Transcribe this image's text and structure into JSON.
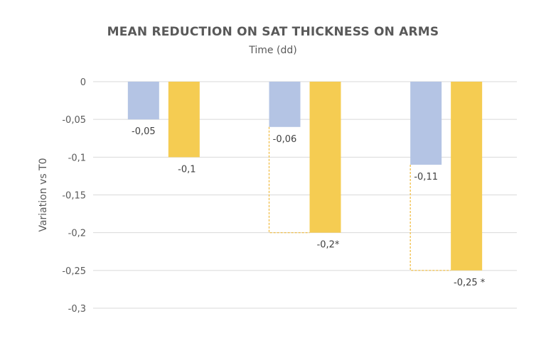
{
  "chart_data": {
    "type": "bar",
    "title": "MEAN REDUCTION ON SAT THICKNESS ON ARMS",
    "subtitle": "Time (dd)",
    "xlabel": "",
    "ylabel": "Variation vs T0",
    "ylim": [
      -0.3,
      0
    ],
    "yticks": [
      0,
      -0.05,
      -0.1,
      -0.15,
      -0.2,
      -0.25,
      -0.3
    ],
    "ytick_labels": [
      "0",
      "-0,05",
      "-0,1",
      "-0,15",
      "-0,2",
      "-0,25",
      "-0,3"
    ],
    "grid": true,
    "legend": "none",
    "categories": [
      "",
      "",
      ""
    ],
    "series": [
      {
        "color": "#b4c4e4",
        "values": [
          -0.05,
          -0.06,
          -0.11
        ],
        "data_labels": [
          "-0,05",
          "-0,06",
          "-0,11"
        ]
      },
      {
        "color": "#f5cc52",
        "values": [
          -0.1,
          -0.2,
          -0.25
        ],
        "data_labels": [
          "-0,1",
          "-0,2*",
          "-0,25 *"
        ]
      }
    ],
    "connector_color": "#f0b93a"
  }
}
